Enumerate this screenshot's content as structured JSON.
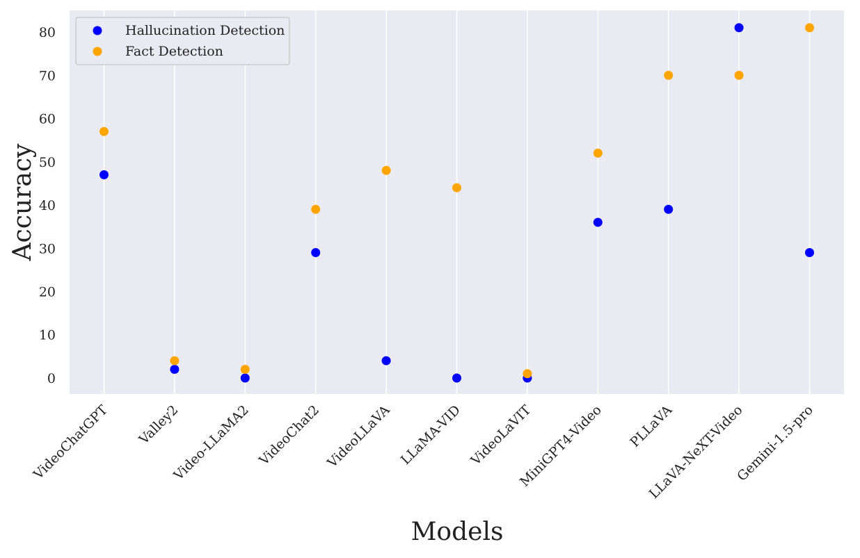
{
  "chart_data": {
    "type": "scatter",
    "xlabel": "Models",
    "ylabel": "Accuracy",
    "categories": [
      "VideoChatGPT",
      "Valley2",
      "Video-LLaMA2",
      "VideoChat2",
      "VideoLLaVA",
      "LLaMA-VID",
      "VideoLaVIT",
      "MiniGPT4-Video",
      "PLLaVA",
      "LLaVA-NeXT-Video",
      "Gemini-1.5-pro"
    ],
    "series": [
      {
        "name": "Hallucination Detection",
        "color": "#0000ff",
        "values": [
          47,
          2,
          0,
          29,
          4,
          0,
          0,
          36,
          39,
          81,
          29
        ]
      },
      {
        "name": "Fact Detection",
        "color": "#ffa500",
        "values": [
          57,
          4,
          2,
          39,
          48,
          44,
          1,
          52,
          70,
          70,
          81
        ]
      }
    ],
    "ylim": [
      -3.7,
      85
    ],
    "yticks": [
      0,
      10,
      20,
      30,
      40,
      50,
      60,
      70,
      80
    ],
    "grid": "vertical",
    "legend_position": "top-left",
    "colors": {
      "plot_bg": "#eaeaf2",
      "grid": "#ffffff"
    }
  }
}
